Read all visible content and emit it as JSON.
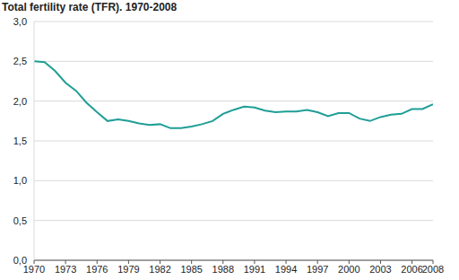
{
  "chart_data": {
    "type": "line",
    "title": "Total fertility rate (TFR). 1970-2008",
    "x": [
      1970,
      1971,
      1972,
      1973,
      1974,
      1975,
      1976,
      1977,
      1978,
      1979,
      1980,
      1981,
      1982,
      1983,
      1984,
      1985,
      1986,
      1987,
      1988,
      1989,
      1990,
      1991,
      1992,
      1993,
      1994,
      1995,
      1996,
      1997,
      1998,
      1999,
      2000,
      2001,
      2002,
      2003,
      2004,
      2005,
      2006,
      2007,
      2008
    ],
    "values": [
      2.5,
      2.49,
      2.38,
      2.23,
      2.13,
      1.98,
      1.86,
      1.75,
      1.77,
      1.75,
      1.72,
      1.7,
      1.71,
      1.66,
      1.66,
      1.68,
      1.71,
      1.75,
      1.84,
      1.89,
      1.93,
      1.92,
      1.88,
      1.86,
      1.87,
      1.87,
      1.89,
      1.86,
      1.81,
      1.85,
      1.85,
      1.78,
      1.75,
      1.8,
      1.83,
      1.84,
      1.9,
      1.9,
      1.96
    ],
    "color": "#1f9e96",
    "xlim": [
      1970,
      2008
    ],
    "xticks": [
      1970,
      1973,
      1976,
      1979,
      1982,
      1985,
      1988,
      1991,
      1994,
      1997,
      2000,
      2003,
      2006,
      2008
    ],
    "ylim": [
      0,
      3
    ],
    "yticks": [
      {
        "value": 0,
        "label": "0,0"
      },
      {
        "value": 0.5,
        "label": "0,5"
      },
      {
        "value": 1,
        "label": "1,0"
      },
      {
        "value": 1.5,
        "label": "1,5"
      },
      {
        "value": 2,
        "label": "2,0"
      },
      {
        "value": 2.5,
        "label": "2,5"
      },
      {
        "value": 3,
        "label": "3,0"
      }
    ],
    "grid": true
  }
}
